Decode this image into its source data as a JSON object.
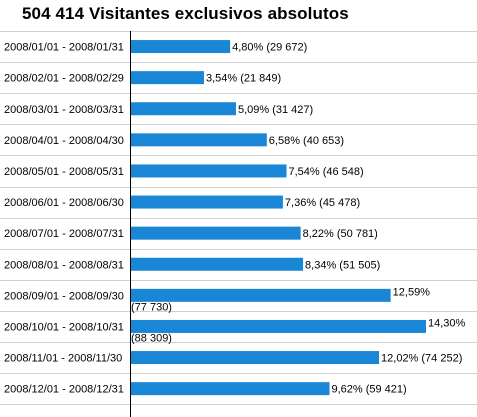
{
  "chart_data": {
    "type": "bar",
    "orientation": "horizontal",
    "title": "504 414 Visitantes exclusivos absolutos",
    "categories": [
      "2008/01/01 - 2008/01/31",
      "2008/02/01 - 2008/02/29",
      "2008/03/01 - 2008/03/31",
      "2008/04/01 - 2008/04/30",
      "2008/05/01 - 2008/05/31",
      "2008/06/01 - 2008/06/30",
      "2008/07/01 - 2008/07/31",
      "2008/08/01 - 2008/08/31",
      "2008/09/01 - 2008/09/30",
      "2008/10/01 - 2008/10/31",
      "2008/11/01 - 2008/11/30",
      "2008/12/01 - 2008/12/31"
    ],
    "values": [
      29672,
      21849,
      31427,
      40653,
      46548,
      45478,
      50781,
      51505,
      77730,
      88309,
      74252,
      59421
    ],
    "percent_labels": [
      "4,80%",
      "3,54%",
      "5,09%",
      "6,58%",
      "7,54%",
      "7,36%",
      "8,22%",
      "8,34%",
      "12,59%",
      "14,30%",
      "12,02%",
      "9,62%"
    ],
    "value_labels": [
      "(29 672)",
      "(21 849)",
      "(31 427)",
      "(40 653)",
      "(46 548)",
      "(45 478)",
      "(50 781)",
      "(51 505)",
      "(77 730)",
      "(88 309)",
      "(74 252)",
      "(59 421)"
    ],
    "bar_color": "#1a86d6",
    "grid_color": "#d0d0d0",
    "axis_color": "#000000",
    "grid": true,
    "legend": "none"
  }
}
